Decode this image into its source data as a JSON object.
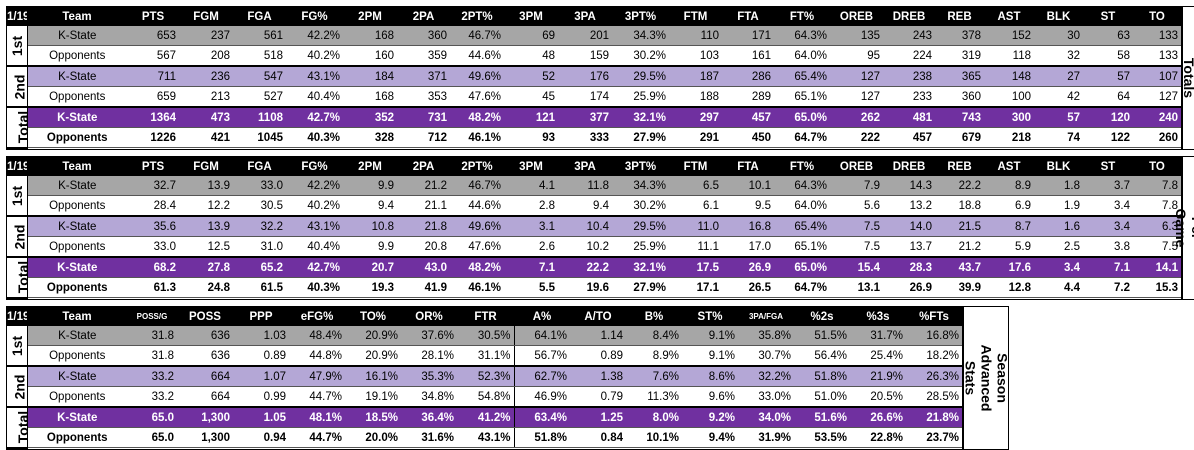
{
  "date_label": "1/19",
  "team_header": "Team",
  "periods": [
    "1st",
    "2nd",
    "Total"
  ],
  "team_names": [
    "K-State",
    "Opponents"
  ],
  "totals": {
    "side_label": "Season Stat Totals",
    "headers": [
      "PTS",
      "FGM",
      "FGA",
      "FG%",
      "2PM",
      "2PA",
      "2PT%",
      "3PM",
      "3PA",
      "3PT%",
      "FTM",
      "FTA",
      "FT%",
      "OREB",
      "DREB",
      "REB",
      "AST",
      "BLK",
      "ST",
      "TO"
    ],
    "rows": [
      [
        "653",
        "237",
        "561",
        "42.2%",
        "168",
        "360",
        "46.7%",
        "69",
        "201",
        "34.3%",
        "110",
        "171",
        "64.3%",
        "135",
        "243",
        "378",
        "152",
        "30",
        "63",
        "133"
      ],
      [
        "567",
        "208",
        "518",
        "40.2%",
        "160",
        "359",
        "44.6%",
        "48",
        "159",
        "30.2%",
        "103",
        "161",
        "64.0%",
        "95",
        "224",
        "319",
        "118",
        "32",
        "58",
        "133"
      ],
      [
        "711",
        "236",
        "547",
        "43.1%",
        "184",
        "371",
        "49.6%",
        "52",
        "176",
        "29.5%",
        "187",
        "286",
        "65.4%",
        "127",
        "238",
        "365",
        "148",
        "27",
        "57",
        "107"
      ],
      [
        "659",
        "213",
        "527",
        "40.4%",
        "168",
        "353",
        "47.6%",
        "45",
        "174",
        "25.9%",
        "188",
        "289",
        "65.1%",
        "127",
        "233",
        "360",
        "100",
        "42",
        "64",
        "127"
      ],
      [
        "1364",
        "473",
        "1108",
        "42.7%",
        "352",
        "731",
        "48.2%",
        "121",
        "377",
        "32.1%",
        "297",
        "457",
        "65.0%",
        "262",
        "481",
        "743",
        "300",
        "57",
        "120",
        "240"
      ],
      [
        "1226",
        "421",
        "1045",
        "40.3%",
        "328",
        "712",
        "46.1%",
        "93",
        "333",
        "27.9%",
        "291",
        "450",
        "64.7%",
        "222",
        "457",
        "679",
        "218",
        "74",
        "122",
        "260"
      ]
    ]
  },
  "per_game": {
    "side_label": "Season Stats Per Game",
    "headers": [
      "PTS",
      "FGM",
      "FGA",
      "FG%",
      "2PM",
      "2PA",
      "2PT%",
      "3PM",
      "3PA",
      "3PT%",
      "FTM",
      "FTA",
      "FT%",
      "OREB",
      "DREB",
      "REB",
      "AST",
      "BLK",
      "ST",
      "TO"
    ],
    "rows": [
      [
        "32.7",
        "13.9",
        "33.0",
        "42.2%",
        "9.9",
        "21.2",
        "46.7%",
        "4.1",
        "11.8",
        "34.3%",
        "6.5",
        "10.1",
        "64.3%",
        "7.9",
        "14.3",
        "22.2",
        "8.9",
        "1.8",
        "3.7",
        "7.8"
      ],
      [
        "28.4",
        "12.2",
        "30.5",
        "40.2%",
        "9.4",
        "21.1",
        "44.6%",
        "2.8",
        "9.4",
        "30.2%",
        "6.1",
        "9.5",
        "64.0%",
        "5.6",
        "13.2",
        "18.8",
        "6.9",
        "1.9",
        "3.4",
        "7.8"
      ],
      [
        "35.6",
        "13.9",
        "32.2",
        "43.1%",
        "10.8",
        "21.8",
        "49.6%",
        "3.1",
        "10.4",
        "29.5%",
        "11.0",
        "16.8",
        "65.4%",
        "7.5",
        "14.0",
        "21.5",
        "8.7",
        "1.6",
        "3.4",
        "6.3"
      ],
      [
        "33.0",
        "12.5",
        "31.0",
        "40.4%",
        "9.9",
        "20.8",
        "47.6%",
        "2.6",
        "10.2",
        "25.9%",
        "11.1",
        "17.0",
        "65.1%",
        "7.5",
        "13.7",
        "21.2",
        "5.9",
        "2.5",
        "3.8",
        "7.5"
      ],
      [
        "68.2",
        "27.8",
        "65.2",
        "42.7%",
        "20.7",
        "43.0",
        "48.2%",
        "7.1",
        "22.2",
        "32.1%",
        "17.5",
        "26.9",
        "65.0%",
        "15.4",
        "28.3",
        "43.7",
        "17.6",
        "3.4",
        "7.1",
        "14.1"
      ],
      [
        "61.3",
        "24.8",
        "61.5",
        "40.3%",
        "19.3",
        "41.9",
        "46.1%",
        "5.5",
        "19.6",
        "27.9%",
        "17.1",
        "26.5",
        "64.7%",
        "13.1",
        "26.9",
        "39.9",
        "12.8",
        "4.4",
        "7.2",
        "15.3"
      ]
    ]
  },
  "advanced": {
    "side_label": "Season Advanced Stats",
    "headers": [
      "POSS/G",
      "POSS",
      "PPP",
      "eFG%",
      "TO%",
      "OR%",
      "FTR",
      "A%",
      "A/TO",
      "B%",
      "ST%",
      "3PA/FGA",
      "%2s",
      "%3s",
      "%FTs"
    ],
    "rows": [
      [
        "31.8",
        "636",
        "1.03",
        "48.4%",
        "20.9%",
        "37.6%",
        "30.5%",
        "64.1%",
        "1.14",
        "8.4%",
        "9.1%",
        "35.8%",
        "51.5%",
        "31.7%",
        "16.8%"
      ],
      [
        "31.8",
        "636",
        "0.89",
        "44.8%",
        "20.9%",
        "28.1%",
        "31.1%",
        "56.7%",
        "0.89",
        "8.9%",
        "9.1%",
        "30.7%",
        "56.4%",
        "25.4%",
        "18.2%"
      ],
      [
        "33.2",
        "664",
        "1.07",
        "47.9%",
        "16.1%",
        "35.3%",
        "52.3%",
        "62.7%",
        "1.38",
        "7.6%",
        "8.6%",
        "32.2%",
        "51.8%",
        "21.9%",
        "26.3%"
      ],
      [
        "33.2",
        "664",
        "0.99",
        "44.7%",
        "19.1%",
        "34.8%",
        "54.8%",
        "46.9%",
        "0.79",
        "11.3%",
        "9.6%",
        "33.0%",
        "51.0%",
        "20.5%",
        "28.5%"
      ],
      [
        "65.0",
        "1,300",
        "1.05",
        "48.1%",
        "18.5%",
        "36.4%",
        "41.2%",
        "63.4%",
        "1.25",
        "8.0%",
        "9.2%",
        "34.0%",
        "51.6%",
        "26.6%",
        "21.8%"
      ],
      [
        "65.0",
        "1,300",
        "0.94",
        "44.7%",
        "20.0%",
        "31.6%",
        "43.1%",
        "51.8%",
        "0.84",
        "10.1%",
        "9.4%",
        "31.9%",
        "53.5%",
        "22.8%",
        "23.7%"
      ]
    ]
  }
}
